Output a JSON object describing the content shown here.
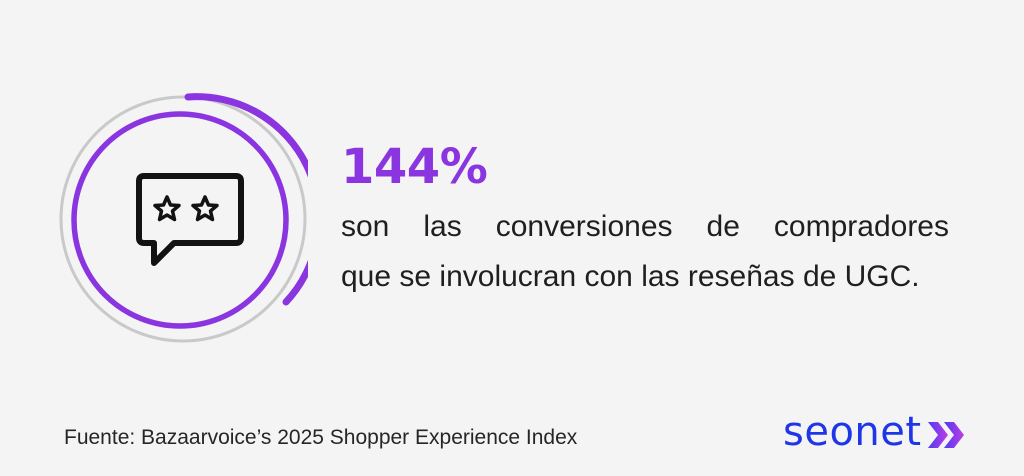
{
  "stat": {
    "value": "144%",
    "description_line1": "son las conversiones de compradores",
    "description_line2": "que se involucran con las reseñas de UGC."
  },
  "source": "Fuente: Bazaarvoice’s 2025 Shopper Experience Index",
  "brand": {
    "name": "seonet",
    "color": "#1f35e8"
  },
  "colors": {
    "accent": "#8a35e0",
    "ring_gray": "#c9c9c9",
    "icon": "#121212"
  },
  "icons": {
    "main": "chat-bubble-stars-icon",
    "brand_mark": "double-chevron-right-icon"
  }
}
